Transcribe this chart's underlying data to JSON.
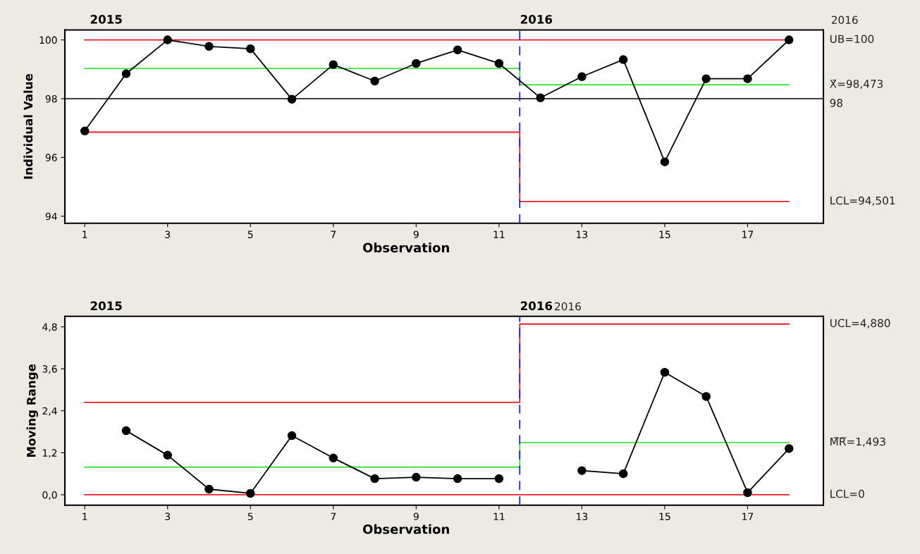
{
  "chart_data": [
    {
      "type": "line",
      "ylabel": "Individual Value",
      "xlabel": "Observation",
      "x": [
        1,
        2,
        3,
        4,
        5,
        6,
        7,
        8,
        9,
        10,
        11,
        12,
        13,
        14,
        15,
        16,
        17,
        18
      ],
      "xlim": [
        0.52,
        18.83
      ],
      "xticks": [
        1,
        3,
        5,
        7,
        9,
        11,
        13,
        15,
        17
      ],
      "ylim": [
        93.76,
        100.34
      ],
      "yticks": [
        94,
        96,
        98,
        100
      ],
      "marker": "circle",
      "grid": false,
      "legend": false,
      "series": [
        {
          "color": "#ee1c25",
          "type": "line",
          "marker": "none",
          "x": [
            1,
            11.5,
            11.5,
            18
          ],
          "values": [
            96.86,
            96.86,
            94.501,
            94.501
          ],
          "name": "LCL=94,501"
        },
        {
          "color": "#ee1c25",
          "type": "line",
          "marker": "none",
          "x": [
            1,
            18
          ],
          "values": [
            100,
            100
          ],
          "name": "UB=100"
        },
        {
          "color": "#3ee63e",
          "type": "line",
          "marker": "none",
          "x": [
            1,
            11.5,
            11.5,
            18
          ],
          "values": [
            99.03,
            99.03,
            98.473,
            98.473
          ],
          "name": "X̄=98,473"
        },
        {
          "color": "#000000",
          "values": [
            96.9,
            98.85,
            100,
            99.78,
            99.7,
            97.98,
            99.16,
            98.6,
            99.2,
            99.66,
            99.2,
            98.03,
            98.75,
            99.33,
            95.85,
            98.68,
            98.68,
            100
          ]
        }
      ],
      "ref_lines": [
        {
          "axis": "y",
          "value": 98,
          "label": "98",
          "color": "#000000",
          "line_style": "solid"
        },
        {
          "axis": "x",
          "value": 11.5,
          "color": "#1a1aff",
          "line_style": "dashed"
        }
      ],
      "annotations": [
        "2015",
        "2016",
        "2016"
      ]
    },
    {
      "type": "line",
      "ylabel": "Moving Range",
      "xlabel": "Observation",
      "xlim": [
        0.52,
        18.83
      ],
      "xticks": [
        1,
        3,
        5,
        7,
        9,
        11,
        13,
        15,
        17
      ],
      "ylim": [
        -0.3,
        5.1
      ],
      "yticks": [
        {
          "value": 0,
          "label": "0,0"
        },
        {
          "value": 1.2,
          "label": "1,2"
        },
        {
          "value": 2.4,
          "label": "2,4"
        },
        {
          "value": 3.6,
          "label": "3,6"
        },
        {
          "value": 4.8,
          "label": "4,8"
        }
      ],
      "marker": "circle",
      "grid": false,
      "legend": false,
      "series": [
        {
          "color": "#ee1c25",
          "type": "line",
          "marker": "none",
          "x": [
            1,
            11.5,
            11.5,
            18
          ],
          "values": [
            2.64,
            2.64,
            4.88,
            4.88
          ],
          "name": "UCL=4,880"
        },
        {
          "color": "#3ee63e",
          "type": "line",
          "marker": "none",
          "x": [
            1,
            11.5,
            11.5,
            18
          ],
          "values": [
            0.79,
            0.79,
            1.493,
            1.493
          ],
          "name": "M̅R̅=1,493"
        },
        {
          "color": "#ee1c25",
          "type": "line",
          "marker": "none",
          "x": [
            1,
            18
          ],
          "values": [
            0,
            0
          ],
          "name": "LCL=0"
        },
        {
          "color": "#000000",
          "x": [
            2,
            3,
            4,
            5,
            6,
            7,
            8,
            9,
            10,
            11,
            12,
            13,
            14,
            15,
            16,
            17,
            18
          ],
          "values": [
            1.83,
            1.13,
            0.16,
            0.04,
            1.69,
            1.05,
            0.46,
            0.5,
            0.46,
            0.46,
            null,
            0.69,
            0.6,
            3.5,
            2.81,
            0.06,
            1.32
          ]
        }
      ],
      "ref_lines": [
        {
          "axis": "x",
          "value": 11.5,
          "color": "#1a1aff",
          "line_style": "dashed"
        }
      ],
      "annotations": [
        "2015",
        "2016",
        "2016"
      ]
    }
  ]
}
